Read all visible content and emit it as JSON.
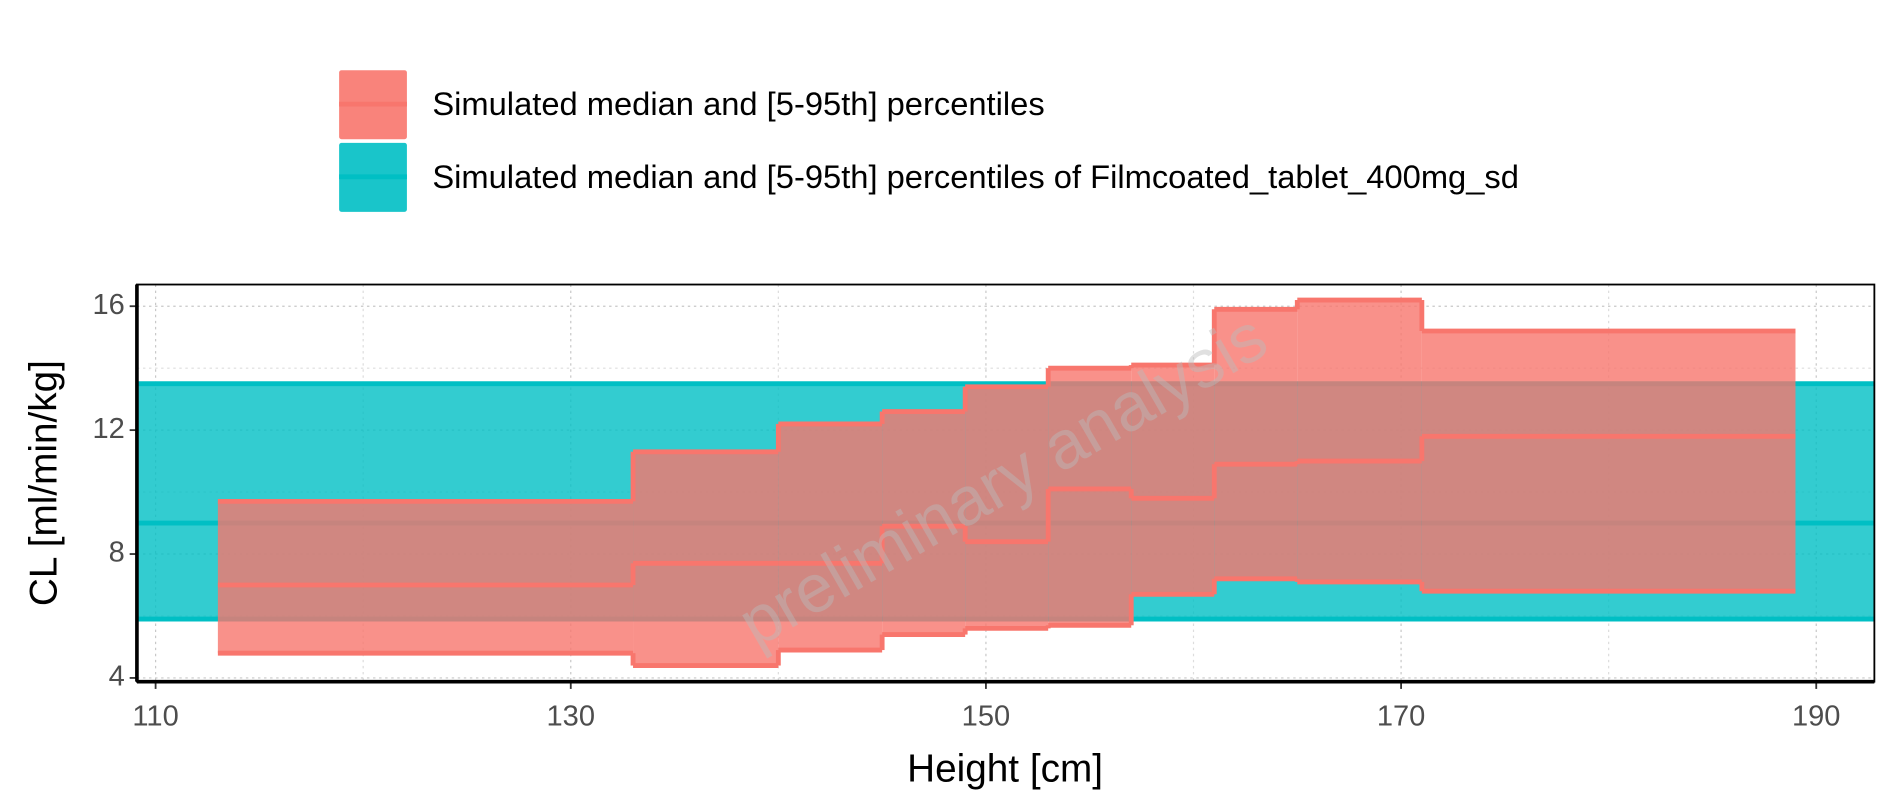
{
  "chart_data": {
    "type": "step-band",
    "x_label": "Height [cm]",
    "y_label": "CL [ml/min/kg]",
    "watermark": "preliminary analysis",
    "xlim": [
      109.1,
      192.8
    ],
    "xticks": [
      110,
      130,
      150,
      170,
      190
    ],
    "ylim": [
      3.88,
      16.7
    ],
    "yticks": [
      4,
      8,
      12,
      16
    ],
    "grid": true,
    "series": [
      {
        "name": "Simulated median and [5-95th] percentiles of Filmcoated_tablet_400mg_sd",
        "color": "#00BFC4",
        "x": [
          109.1,
          192.8
        ],
        "lower": [
          5.9,
          5.9
        ],
        "median": [
          9.0,
          9.0
        ],
        "upper": [
          13.5,
          13.5
        ]
      },
      {
        "name": "Simulated median and [5-95th] percentiles",
        "color": "#F8766D",
        "x": [
          113,
          133,
          140,
          145,
          149,
          153,
          157,
          161,
          165,
          171,
          189
        ],
        "lower": [
          4.8,
          4.4,
          4.9,
          5.4,
          5.6,
          5.7,
          6.7,
          7.2,
          7.1,
          6.8,
          6.8
        ],
        "median": [
          7.0,
          7.7,
          7.7,
          8.9,
          8.4,
          10.1,
          9.8,
          10.9,
          11.0,
          11.8,
          11.8
        ],
        "upper": [
          9.7,
          11.3,
          12.2,
          12.6,
          13.4,
          14.0,
          14.1,
          15.9,
          16.2,
          15.2,
          15.2
        ]
      }
    ]
  }
}
